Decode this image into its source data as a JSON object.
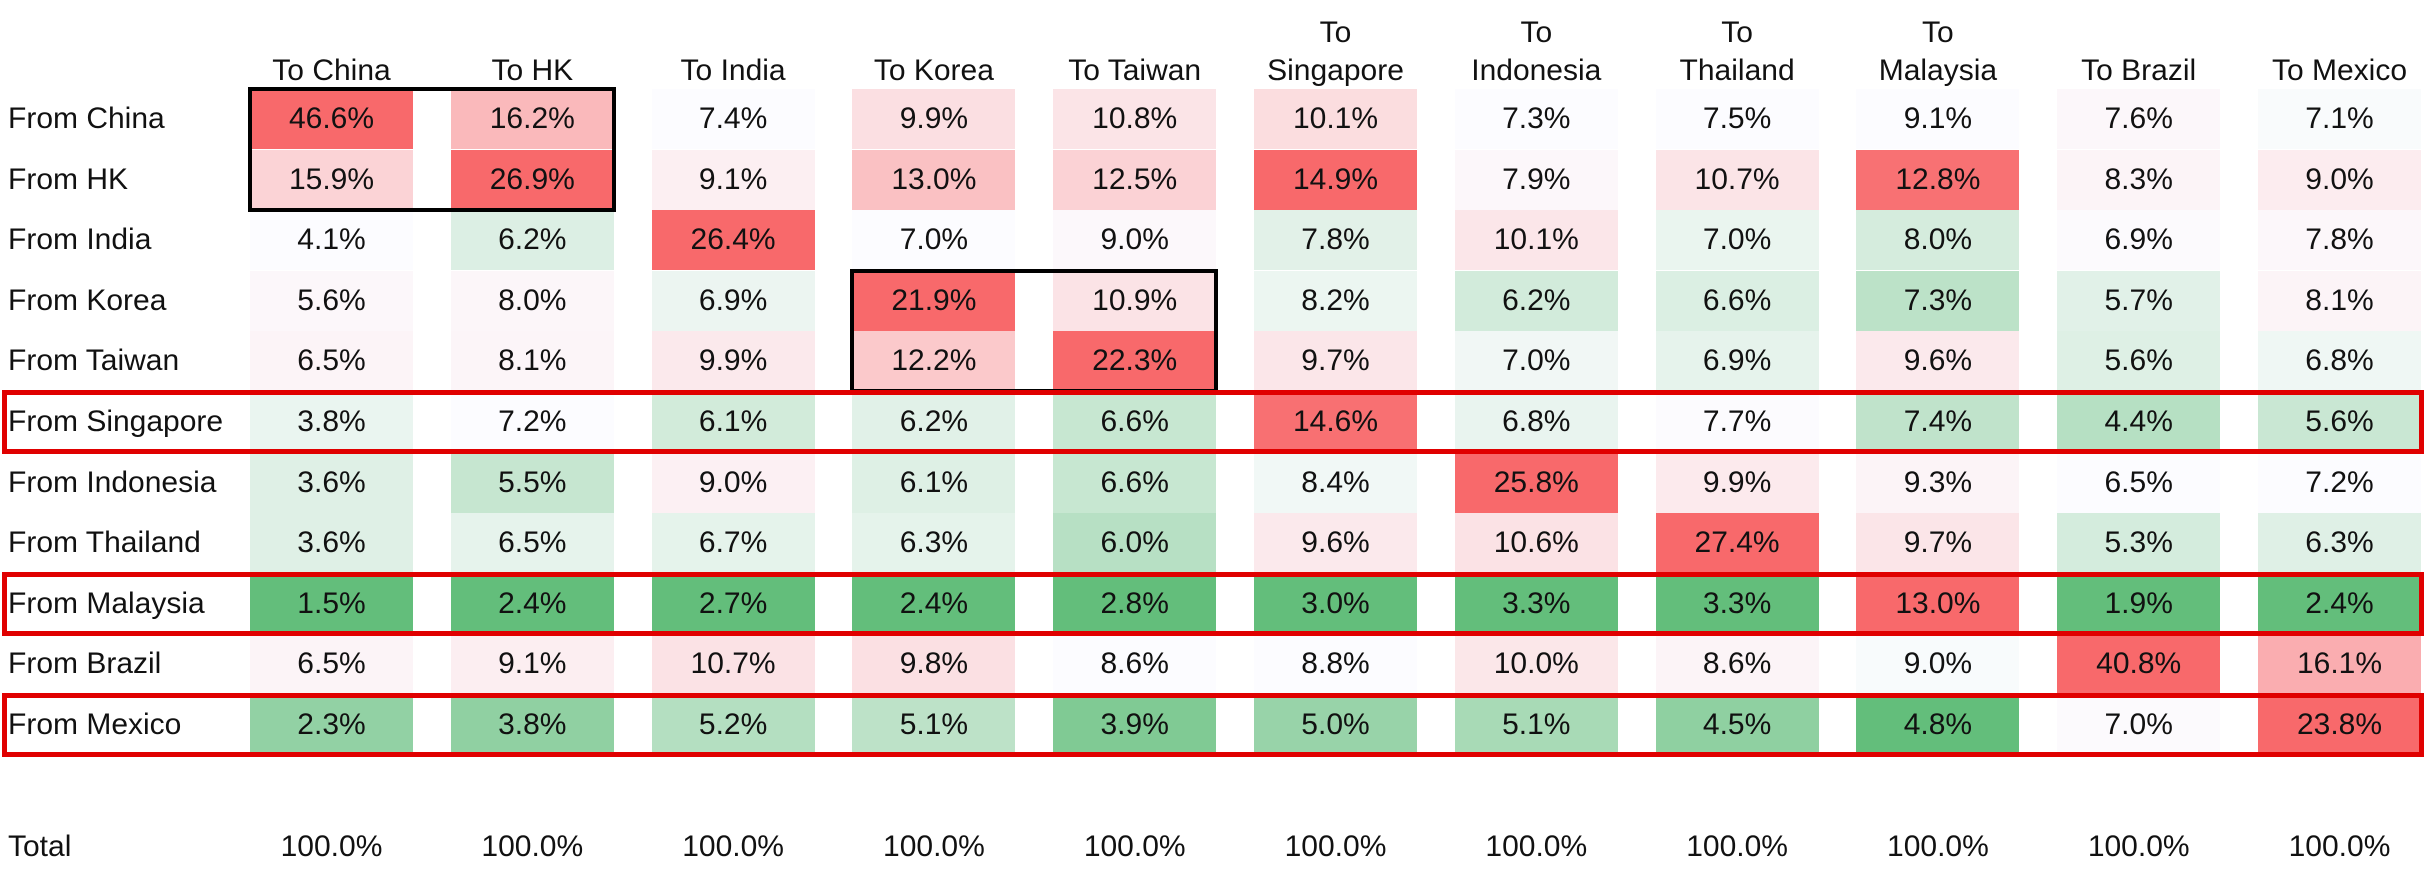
{
  "table": {
    "columns": [
      "To China",
      "To HK",
      "To India",
      "To Korea",
      "To Taiwan",
      "To Singapore",
      "To Indonesia",
      "To Thailand",
      "To Malaysia",
      "To Brazil",
      "To Mexico"
    ],
    "rows": [
      {
        "label": "From China",
        "cells": [
          "46.6%",
          "16.2%",
          "7.4%",
          "9.9%",
          "10.8%",
          "10.1%",
          "7.3%",
          "7.5%",
          "9.1%",
          "7.6%",
          "7.1%"
        ]
      },
      {
        "label": "From HK",
        "cells": [
          "15.9%",
          "26.9%",
          "9.1%",
          "13.0%",
          "12.5%",
          "14.9%",
          "7.9%",
          "10.7%",
          "12.8%",
          "8.3%",
          "9.0%"
        ]
      },
      {
        "label": "From India",
        "cells": [
          "4.1%",
          "6.2%",
          "26.4%",
          "7.0%",
          "9.0%",
          "7.8%",
          "10.1%",
          "7.0%",
          "8.0%",
          "6.9%",
          "7.8%"
        ]
      },
      {
        "label": "From Korea",
        "cells": [
          "5.6%",
          "8.0%",
          "6.9%",
          "21.9%",
          "10.9%",
          "8.2%",
          "6.2%",
          "6.6%",
          "7.3%",
          "5.7%",
          "8.1%"
        ]
      },
      {
        "label": "From Taiwan",
        "cells": [
          "6.5%",
          "8.1%",
          "9.9%",
          "12.2%",
          "22.3%",
          "9.7%",
          "7.0%",
          "6.9%",
          "9.6%",
          "5.6%",
          "6.8%"
        ]
      },
      {
        "label": "From Singapore",
        "cells": [
          "3.8%",
          "7.2%",
          "6.1%",
          "6.2%",
          "6.6%",
          "14.6%",
          "6.8%",
          "7.7%",
          "7.4%",
          "4.4%",
          "5.6%"
        ]
      },
      {
        "label": "From Indonesia",
        "cells": [
          "3.6%",
          "5.5%",
          "9.0%",
          "6.1%",
          "6.6%",
          "8.4%",
          "25.8%",
          "9.9%",
          "9.3%",
          "6.5%",
          "7.2%"
        ]
      },
      {
        "label": "From Thailand",
        "cells": [
          "3.6%",
          "6.5%",
          "6.7%",
          "6.3%",
          "6.0%",
          "9.6%",
          "10.6%",
          "27.4%",
          "9.7%",
          "5.3%",
          "6.3%"
        ]
      },
      {
        "label": "From Malaysia",
        "cells": [
          "1.5%",
          "2.4%",
          "2.7%",
          "2.4%",
          "2.8%",
          "3.0%",
          "3.3%",
          "3.3%",
          "13.0%",
          "1.9%",
          "2.4%"
        ]
      },
      {
        "label": "From Brazil",
        "cells": [
          "6.5%",
          "9.1%",
          "10.7%",
          "9.8%",
          "8.6%",
          "8.8%",
          "10.0%",
          "8.6%",
          "9.0%",
          "40.8%",
          "16.1%"
        ]
      },
      {
        "label": "From Mexico",
        "cells": [
          "2.3%",
          "3.8%",
          "5.2%",
          "5.1%",
          "3.9%",
          "5.0%",
          "5.1%",
          "4.5%",
          "4.8%",
          "7.0%",
          "23.8%"
        ]
      }
    ],
    "total": {
      "label": "Total",
      "cells": [
        "100.0%",
        "100.0%",
        "100.0%",
        "100.0%",
        "100.0%",
        "100.0%",
        "100.0%",
        "100.0%",
        "100.0%",
        "100.0%",
        "100.0%"
      ]
    }
  }
}
